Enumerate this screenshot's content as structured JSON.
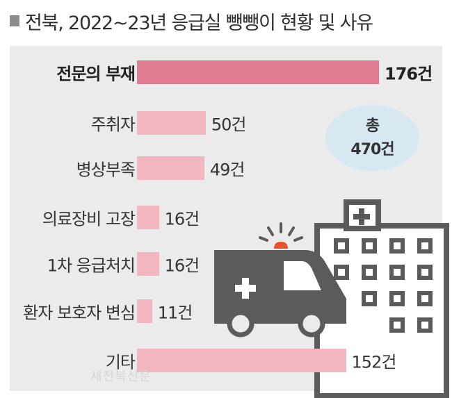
{
  "title": "전북, 2022~23년 응급실 뺑뺑이 현황 및 사유",
  "total": {
    "line1": "총",
    "line2": "470건"
  },
  "watermark": "새전북신문",
  "colors": {
    "highlight_bar": "#e07d92",
    "bar": "#f2b6c1",
    "icon": "#5b5b5b",
    "siren": "#e8502a",
    "bubble": "#d8e8f3"
  },
  "chart_data": {
    "type": "bar",
    "orientation": "horizontal",
    "unit": "건",
    "categories": [
      "전문의 부재",
      "주취자",
      "병상부족",
      "의료장비 고장",
      "1차 응급처치",
      "환자 보호자 변심",
      "기타"
    ],
    "values": [
      176,
      50,
      49,
      16,
      16,
      11,
      152
    ],
    "value_labels": [
      "176건",
      "50건",
      "49건",
      "16건",
      "16건",
      "11건",
      "152건"
    ],
    "highlight_index": 0
  }
}
